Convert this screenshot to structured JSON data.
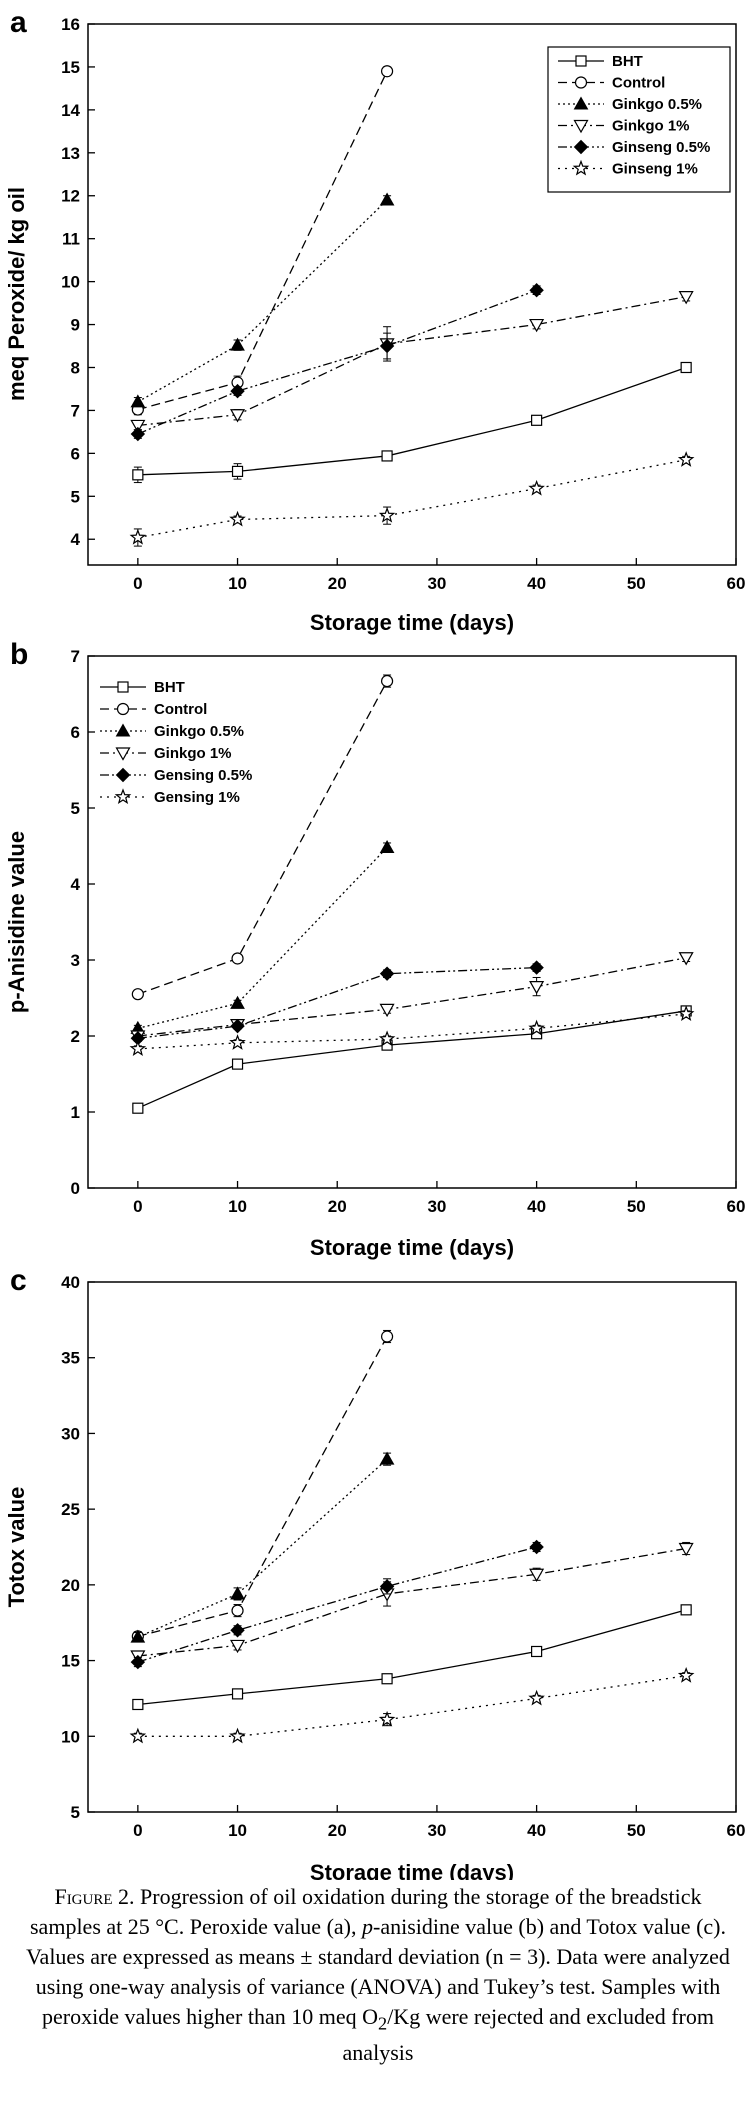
{
  "chart_data": [
    {
      "type": "line",
      "panel_label": "a",
      "xlabel": "Storage time (days)",
      "ylabel": "meq Peroxide/ kg oil",
      "xlim": [
        -5,
        60
      ],
      "ylim": [
        3.4,
        16
      ],
      "xticks": [
        0,
        10,
        20,
        30,
        40,
        50,
        60
      ],
      "yticks": [
        4,
        5,
        6,
        7,
        8,
        9,
        10,
        11,
        12,
        13,
        14,
        15,
        16
      ],
      "legend_position": "top-right",
      "legend_font": "sans",
      "series": [
        {
          "name": "BHT",
          "marker": "square-open",
          "dash": "solid",
          "x": [
            0,
            10,
            25,
            40,
            55
          ],
          "y": [
            5.5,
            5.58,
            5.94,
            6.77,
            8.0
          ],
          "err": [
            0.18,
            0.18,
            0.1,
            0.1,
            0.1
          ]
        },
        {
          "name": "Control",
          "marker": "circle-open",
          "dash": "dash",
          "x": [
            0,
            10,
            25
          ],
          "y": [
            7.02,
            7.65,
            14.9
          ],
          "err": [
            0.12,
            0.15,
            0.1
          ]
        },
        {
          "name": "Ginkgo 0.5%",
          "marker": "triangle-up-filled",
          "dash": "dot",
          "x": [
            0,
            10,
            25
          ],
          "y": [
            7.2,
            8.52,
            11.9
          ],
          "err": [
            0.1,
            0.12,
            0.1
          ]
        },
        {
          "name": "Ginkgo 1%",
          "marker": "triangle-down-open",
          "dash": "dashdot",
          "x": [
            0,
            10,
            25,
            40,
            55
          ],
          "y": [
            6.65,
            6.9,
            8.55,
            9.0,
            9.65
          ],
          "err": [
            0.1,
            0.12,
            0.4,
            0.1,
            0.1
          ]
        },
        {
          "name": "Ginseng 0.5%",
          "marker": "diamond-filled",
          "dash": "dashdotdot",
          "x": [
            0,
            10,
            25,
            40
          ],
          "y": [
            6.45,
            7.45,
            8.5,
            9.8
          ],
          "err": [
            0.1,
            0.1,
            0.3,
            0.1
          ]
        },
        {
          "name": "Ginseng 1%",
          "marker": "star-open",
          "dash": "shortdot",
          "x": [
            0,
            10,
            25,
            40,
            55
          ],
          "y": [
            4.04,
            4.46,
            4.55,
            5.18,
            5.85
          ],
          "err": [
            0.2,
            0.08,
            0.2,
            0.08,
            0.08
          ]
        }
      ]
    },
    {
      "type": "line",
      "panel_label": "b",
      "xlabel": "Storage time (days)",
      "ylabel": "p-Anisidine value",
      "xlim": [
        -5,
        60
      ],
      "ylim": [
        0,
        7
      ],
      "xticks": [
        0,
        10,
        20,
        30,
        40,
        50,
        60
      ],
      "yticks": [
        0,
        1,
        2,
        3,
        4,
        5,
        6,
        7
      ],
      "legend_position": "top-left",
      "legend_font": "serif",
      "series": [
        {
          "name": "BHT",
          "marker": "square-open",
          "dash": "solid",
          "x": [
            0,
            10,
            25,
            40,
            55
          ],
          "y": [
            1.05,
            1.63,
            1.88,
            2.03,
            2.33
          ],
          "err": [
            0.05,
            0.05,
            0.05,
            0.05,
            0.05
          ]
        },
        {
          "name": "Control",
          "marker": "circle-open",
          "dash": "dash",
          "x": [
            0,
            10,
            25
          ],
          "y": [
            2.55,
            3.02,
            6.67
          ],
          "err": [
            0.05,
            0.05,
            0.08
          ]
        },
        {
          "name": "Ginkgo 0.5%",
          "marker": "triangle-up-filled",
          "dash": "dot",
          "x": [
            0,
            10,
            25
          ],
          "y": [
            2.1,
            2.43,
            4.48
          ],
          "err": [
            0.04,
            0.04,
            0.06
          ]
        },
        {
          "name": "Ginkgo 1%",
          "marker": "triangle-down-open",
          "dash": "dashdot",
          "x": [
            0,
            10,
            25,
            40,
            55
          ],
          "y": [
            2.0,
            2.15,
            2.35,
            2.65,
            3.03
          ],
          "err": [
            0.04,
            0.04,
            0.05,
            0.12,
            0.05
          ]
        },
        {
          "name": "Gensing 0.5%",
          "marker": "diamond-filled",
          "dash": "dashdotdot",
          "x": [
            0,
            10,
            25,
            40
          ],
          "y": [
            1.97,
            2.13,
            2.82,
            2.9
          ],
          "err": [
            0.04,
            0.04,
            0.05,
            0.05
          ]
        },
        {
          "name": "Gensing 1%",
          "marker": "star-open",
          "dash": "shortdot",
          "x": [
            0,
            10,
            25,
            40,
            55
          ],
          "y": [
            1.83,
            1.91,
            1.96,
            2.1,
            2.29
          ],
          "err": [
            0.04,
            0.04,
            0.04,
            0.04,
            0.04
          ]
        }
      ]
    },
    {
      "type": "line",
      "panel_label": "c",
      "xlabel": "Storage time (days)",
      "ylabel": "Totox value",
      "xlim": [
        -5,
        60
      ],
      "ylim": [
        5,
        40
      ],
      "xticks": [
        0,
        10,
        20,
        30,
        40,
        50,
        60
      ],
      "yticks": [
        5,
        10,
        15,
        20,
        25,
        30,
        35,
        40
      ],
      "legend_position": "none",
      "legend_font": "sans",
      "series": [
        {
          "name": "BHT",
          "marker": "square-open",
          "dash": "solid",
          "x": [
            0,
            10,
            25,
            40,
            55
          ],
          "y": [
            12.1,
            12.8,
            13.8,
            15.6,
            18.35
          ],
          "err": [
            0.3,
            0.3,
            0.3,
            0.3,
            0.3
          ]
        },
        {
          "name": "Control",
          "marker": "circle-open",
          "dash": "dash",
          "x": [
            0,
            10,
            25
          ],
          "y": [
            16.6,
            18.3,
            36.4
          ],
          "err": [
            0.3,
            0.4,
            0.4
          ]
        },
        {
          "name": "Ginkgo 0.5%",
          "marker": "triangle-up-filled",
          "dash": "dot",
          "x": [
            0,
            10,
            25
          ],
          "y": [
            16.55,
            19.4,
            28.3
          ],
          "err": [
            0.3,
            0.4,
            0.4
          ]
        },
        {
          "name": "Ginkgo 1%",
          "marker": "triangle-down-open",
          "dash": "dashdot",
          "x": [
            0,
            10,
            25,
            40,
            55
          ],
          "y": [
            15.3,
            16.0,
            19.4,
            20.7,
            22.4
          ],
          "err": [
            0.3,
            0.3,
            0.8,
            0.4,
            0.4
          ]
        },
        {
          "name": "Ginseng 0.5%",
          "marker": "diamond-filled",
          "dash": "dashdotdot",
          "x": [
            0,
            10,
            25,
            40
          ],
          "y": [
            14.9,
            17.0,
            19.9,
            22.5
          ],
          "err": [
            0.3,
            0.3,
            0.5,
            0.3
          ]
        },
        {
          "name": "Ginseng 1%",
          "marker": "star-open",
          "dash": "shortdot",
          "x": [
            0,
            10,
            25,
            40,
            55
          ],
          "y": [
            10.0,
            10.0,
            11.1,
            12.5,
            14.0
          ],
          "err": [
            0.2,
            0.2,
            0.4,
            0.2,
            0.2
          ]
        }
      ]
    }
  ],
  "caption": {
    "figure_label": "Figure 2.",
    "text_1": "Progression of oil oxidation during the storage of the breadstick samples at 25 °C. Peroxide value (a), ",
    "italic_term": "p",
    "text_2": "-anisidine value (b) and Totox value (c). Values are expressed as means ± standard deviation (n = 3). Data were analyzed using one-way analysis of variance (ANOVA) and Tukey’s test. Samples with peroxide values higher than 10 meq O",
    "subscript": "2",
    "text_3": "/Kg were rejected and excluded from analysis"
  }
}
